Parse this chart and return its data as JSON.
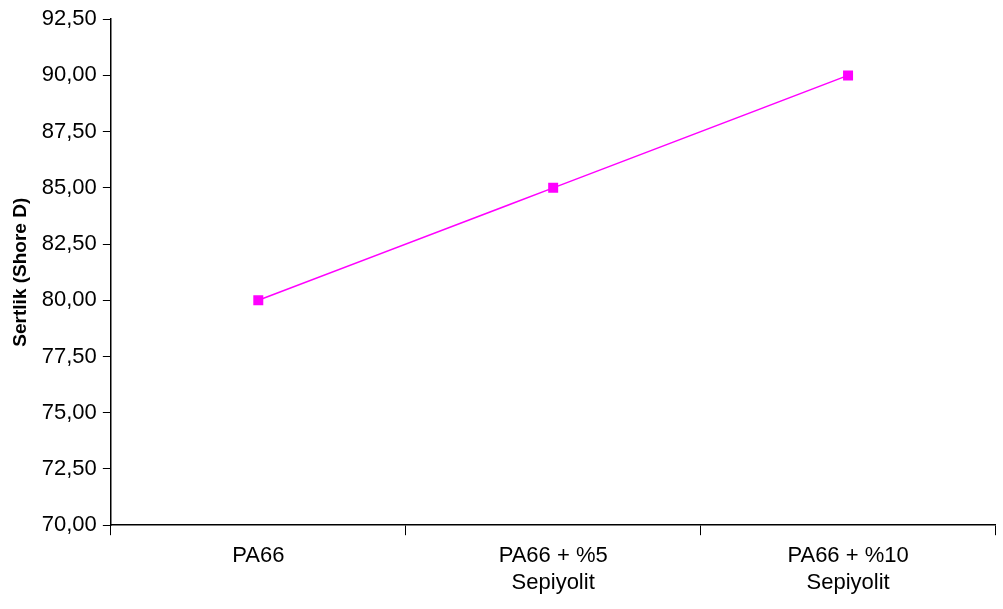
{
  "chart_data": {
    "type": "line",
    "ylabel": "Sertlik (Shore D)",
    "categories": [
      "PA66",
      "PA66 + %5\nSepiyolit",
      "PA66 + %10\nSepiyolit"
    ],
    "series": [
      {
        "color": "#ff00ff",
        "values": [
          80,
          85,
          90
        ]
      }
    ],
    "ylim": [
      70,
      92.5
    ],
    "yticks": [
      {
        "value": 70,
        "label": "70,00"
      },
      {
        "value": 72.5,
        "label": "72,50"
      },
      {
        "value": 75,
        "label": "75,00"
      },
      {
        "value": 77.5,
        "label": "77,50"
      },
      {
        "value": 80,
        "label": "80,00"
      },
      {
        "value": 82.5,
        "label": "82,50"
      },
      {
        "value": 85,
        "label": "85,00"
      },
      {
        "value": 87.5,
        "label": "87,50"
      },
      {
        "value": 90,
        "label": "90,00"
      },
      {
        "value": 92.5,
        "label": "92,50"
      }
    ],
    "grid": false,
    "legend": false,
    "marker": "square",
    "line_style": "solid"
  }
}
